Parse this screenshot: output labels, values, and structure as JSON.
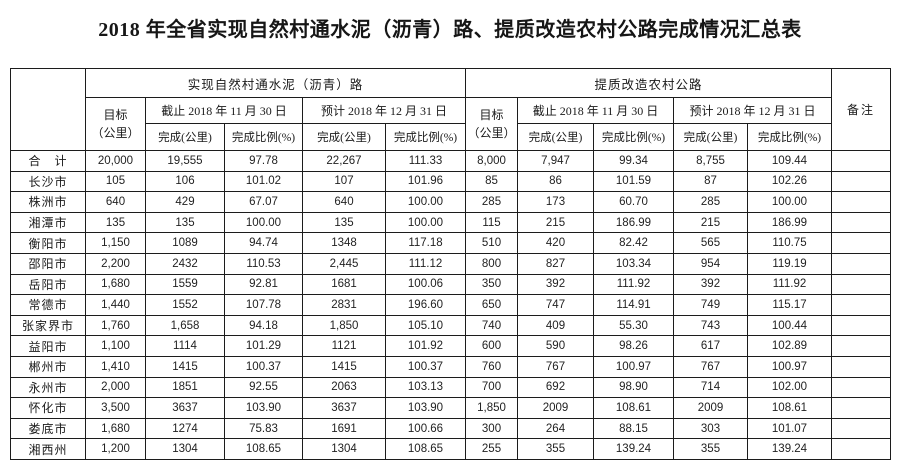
{
  "title": "2018 年全省实现自然村通水泥（沥青）路、提质改造农村公路完成情况汇总表",
  "table": {
    "group1_label": "实现自然村通水泥（沥青）路",
    "group2_label": "提质改造农村公路",
    "target_line1": "目标",
    "target_line2": "（公里）",
    "period1_label": "截止 2018 年 11 月 30 日",
    "period2_label": "预计 2018 年 12 月 31 日",
    "completed_label": "完成(公里)",
    "ratio_label": "完成比例(%)",
    "remark_label": "备注",
    "rows": [
      {
        "name": "合　计",
        "g1": [
          "20,000",
          "19,555",
          "97.78",
          "22,267",
          "111.33"
        ],
        "g2": [
          "8,000",
          "7,947",
          "99.34",
          "8,755",
          "109.44"
        ],
        "remark": ""
      },
      {
        "name": "长沙市",
        "g1": [
          "105",
          "106",
          "101.02",
          "107",
          "101.96"
        ],
        "g2": [
          "85",
          "86",
          "101.59",
          "87",
          "102.26"
        ],
        "remark": ""
      },
      {
        "name": "株洲市",
        "g1": [
          "640",
          "429",
          "67.07",
          "640",
          "100.00"
        ],
        "g2": [
          "285",
          "173",
          "60.70",
          "285",
          "100.00"
        ],
        "remark": ""
      },
      {
        "name": "湘潭市",
        "g1": [
          "135",
          "135",
          "100.00",
          "135",
          "100.00"
        ],
        "g2": [
          "115",
          "215",
          "186.99",
          "215",
          "186.99"
        ],
        "remark": ""
      },
      {
        "name": "衡阳市",
        "g1": [
          "1,150",
          "1089",
          "94.74",
          "1348",
          "117.18"
        ],
        "g2": [
          "510",
          "420",
          "82.42",
          "565",
          "110.75"
        ],
        "remark": ""
      },
      {
        "name": "邵阳市",
        "g1": [
          "2,200",
          "2432",
          "110.53",
          "2,445",
          "111.12"
        ],
        "g2": [
          "800",
          "827",
          "103.34",
          "954",
          "119.19"
        ],
        "remark": ""
      },
      {
        "name": "岳阳市",
        "g1": [
          "1,680",
          "1559",
          "92.81",
          "1681",
          "100.06"
        ],
        "g2": [
          "350",
          "392",
          "111.92",
          "392",
          "111.92"
        ],
        "remark": ""
      },
      {
        "name": "常德市",
        "g1": [
          "1,440",
          "1552",
          "107.78",
          "2831",
          "196.60"
        ],
        "g2": [
          "650",
          "747",
          "114.91",
          "749",
          "115.17"
        ],
        "remark": ""
      },
      {
        "name": "张家界市",
        "g1": [
          "1,760",
          "1,658",
          "94.18",
          "1,850",
          "105.10"
        ],
        "g2": [
          "740",
          "409",
          "55.30",
          "743",
          "100.44"
        ],
        "remark": ""
      },
      {
        "name": "益阳市",
        "g1": [
          "1,100",
          "1114",
          "101.29",
          "1121",
          "101.92"
        ],
        "g2": [
          "600",
          "590",
          "98.26",
          "617",
          "102.89"
        ],
        "remark": ""
      },
      {
        "name": "郴州市",
        "g1": [
          "1,410",
          "1415",
          "100.37",
          "1415",
          "100.37"
        ],
        "g2": [
          "760",
          "767",
          "100.97",
          "767",
          "100.97"
        ],
        "remark": ""
      },
      {
        "name": "永州市",
        "g1": [
          "2,000",
          "1851",
          "92.55",
          "2063",
          "103.13"
        ],
        "g2": [
          "700",
          "692",
          "98.90",
          "714",
          "102.00"
        ],
        "remark": ""
      },
      {
        "name": "怀化市",
        "g1": [
          "3,500",
          "3637",
          "103.90",
          "3637",
          "103.90"
        ],
        "g2": [
          "1,850",
          "2009",
          "108.61",
          "2009",
          "108.61"
        ],
        "remark": ""
      },
      {
        "name": "娄底市",
        "g1": [
          "1,680",
          "1274",
          "75.83",
          "1691",
          "100.66"
        ],
        "g2": [
          "300",
          "264",
          "88.15",
          "303",
          "101.07"
        ],
        "remark": ""
      },
      {
        "name": "湘西州",
        "g1": [
          "1,200",
          "1304",
          "108.65",
          "1304",
          "108.65"
        ],
        "g2": [
          "255",
          "355",
          "139.24",
          "355",
          "139.24"
        ],
        "remark": ""
      }
    ]
  }
}
